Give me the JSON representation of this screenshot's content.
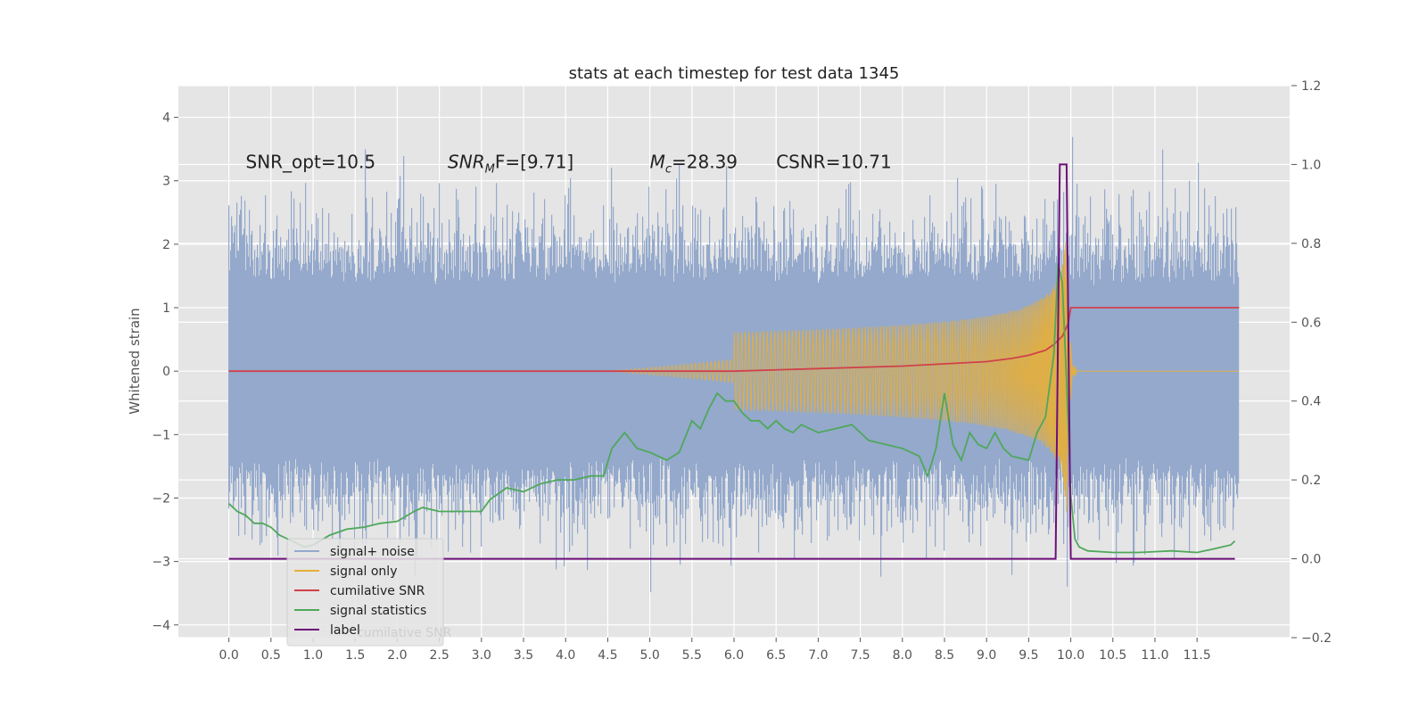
{
  "chart_data": {
    "type": "line",
    "title": "stats at each timestep for test data 1345",
    "ylabel": "Whitened strain",
    "ylabel_right": "",
    "xlim": [
      -0.6,
      12.6
    ],
    "ylim": [
      -4.2,
      4.5
    ],
    "ylim_right": [
      -0.2,
      1.2
    ],
    "grid": true,
    "legend_position": "lower-left",
    "x_ticks": [
      "0.0",
      "0.5",
      "1.0",
      "1.5",
      "2.0",
      "2.5",
      "3.0",
      "3.5",
      "4.0",
      "4.5",
      "5.0",
      "5.5",
      "6.0",
      "6.5",
      "7.0",
      "7.5",
      "8.0",
      "8.5",
      "9.0",
      "9.5",
      "10.0",
      "10.5",
      "11.0",
      "11.5"
    ],
    "y_ticks": [
      4,
      3,
      2,
      1,
      0,
      -1,
      -2,
      -3,
      -4
    ],
    "y_ticks_right": [
      "1.2",
      "1.0",
      "0.8",
      "0.6",
      "0.4",
      "0.2",
      "0.0",
      "−0.2"
    ],
    "annotations": [
      {
        "x": 0.2,
        "y": 3.3,
        "text": "SNR_opt=10.5"
      },
      {
        "x": 2.6,
        "y": 3.3,
        "text": "SNR",
        "subscript": "M",
        "suffix": "F=[9.71]"
      },
      {
        "x": 5.0,
        "y": 3.3,
        "text": "M",
        "subscript": "c",
        "suffix": "=28.39"
      },
      {
        "x": 6.5,
        "y": 3.3,
        "text": "CSNR=10.71"
      }
    ],
    "legend": [
      "signal+ noise",
      "signal only",
      "cumilative SNR",
      "signal statistics",
      "label"
    ],
    "hidden_legend_text": "cumilative SNR",
    "colors": {
      "noise": "#94a9cc",
      "signal": "#e5ae38",
      "cumulative": "#d1414a",
      "statistics": "#4fa85a",
      "label": "#6e0f7a",
      "background": "#e5e5e5",
      "grid": "#ffffff"
    },
    "series": [
      {
        "name": "signal+ noise",
        "axis": "left",
        "x_range": [
          0.0,
          12.0
        ],
        "typical_envelope": [
          -2.0,
          2.0
        ],
        "extreme_envelope": [
          -3.8,
          4.1
        ]
      },
      {
        "name": "signal only",
        "axis": "left",
        "x_range": [
          0.0,
          12.0
        ],
        "chirp_start": 6.0,
        "merger": 9.95,
        "peak_amplitude": 2.3
      },
      {
        "name": "cumilative SNR",
        "axis": "left",
        "x": [
          0.0,
          6.0,
          7.0,
          8.0,
          9.0,
          9.3,
          9.5,
          9.7,
          9.8,
          9.9,
          9.97,
          10.0,
          12.0
        ],
        "y": [
          0.0,
          0.0,
          0.04,
          0.08,
          0.15,
          0.2,
          0.25,
          0.33,
          0.42,
          0.55,
          0.75,
          1.0,
          1.0
        ]
      },
      {
        "name": "signal statistics",
        "axis": "right",
        "x": [
          0.0,
          0.1,
          0.2,
          0.3,
          0.4,
          0.5,
          0.6,
          0.7,
          0.8,
          0.9,
          1.0,
          1.2,
          1.4,
          1.6,
          1.8,
          2.0,
          2.2,
          2.3,
          2.4,
          2.5,
          2.7,
          2.9,
          3.0,
          3.1,
          3.3,
          3.5,
          3.7,
          3.9,
          4.1,
          4.3,
          4.45,
          4.55,
          4.7,
          4.85,
          5.0,
          5.2,
          5.35,
          5.5,
          5.6,
          5.7,
          5.8,
          5.9,
          6.0,
          6.1,
          6.2,
          6.3,
          6.4,
          6.5,
          6.6,
          6.7,
          6.8,
          7.0,
          7.2,
          7.4,
          7.6,
          7.8,
          8.0,
          8.2,
          8.3,
          8.4,
          8.5,
          8.6,
          8.7,
          8.8,
          8.9,
          9.0,
          9.1,
          9.2,
          9.3,
          9.5,
          9.6,
          9.7,
          9.8,
          9.85,
          9.9,
          9.95,
          10.0,
          10.05,
          10.1,
          10.2,
          10.5,
          10.8,
          11.0,
          11.2,
          11.5,
          11.7,
          11.8,
          11.9,
          11.95
        ],
        "y": [
          0.14,
          0.12,
          0.11,
          0.09,
          0.09,
          0.08,
          0.06,
          0.05,
          0.04,
          0.03,
          0.035,
          0.06,
          0.075,
          0.08,
          0.09,
          0.095,
          0.12,
          0.13,
          0.125,
          0.12,
          0.12,
          0.12,
          0.12,
          0.15,
          0.18,
          0.17,
          0.19,
          0.2,
          0.2,
          0.21,
          0.21,
          0.28,
          0.32,
          0.28,
          0.27,
          0.25,
          0.27,
          0.35,
          0.33,
          0.38,
          0.42,
          0.4,
          0.4,
          0.37,
          0.35,
          0.35,
          0.33,
          0.35,
          0.33,
          0.32,
          0.34,
          0.32,
          0.33,
          0.34,
          0.3,
          0.29,
          0.28,
          0.26,
          0.21,
          0.28,
          0.42,
          0.29,
          0.25,
          0.32,
          0.29,
          0.28,
          0.32,
          0.28,
          0.26,
          0.25,
          0.32,
          0.36,
          0.52,
          0.75,
          0.7,
          0.45,
          0.16,
          0.05,
          0.03,
          0.02,
          0.016,
          0.016,
          0.018,
          0.02,
          0.016,
          0.025,
          0.03,
          0.035,
          0.045
        ]
      },
      {
        "name": "label",
        "axis": "right",
        "x": [
          0.0,
          9.82,
          9.87,
          9.95,
          10.0,
          11.95
        ],
        "y": [
          0.0,
          0.0,
          1.0,
          1.0,
          0.0,
          0.0
        ]
      }
    ]
  }
}
